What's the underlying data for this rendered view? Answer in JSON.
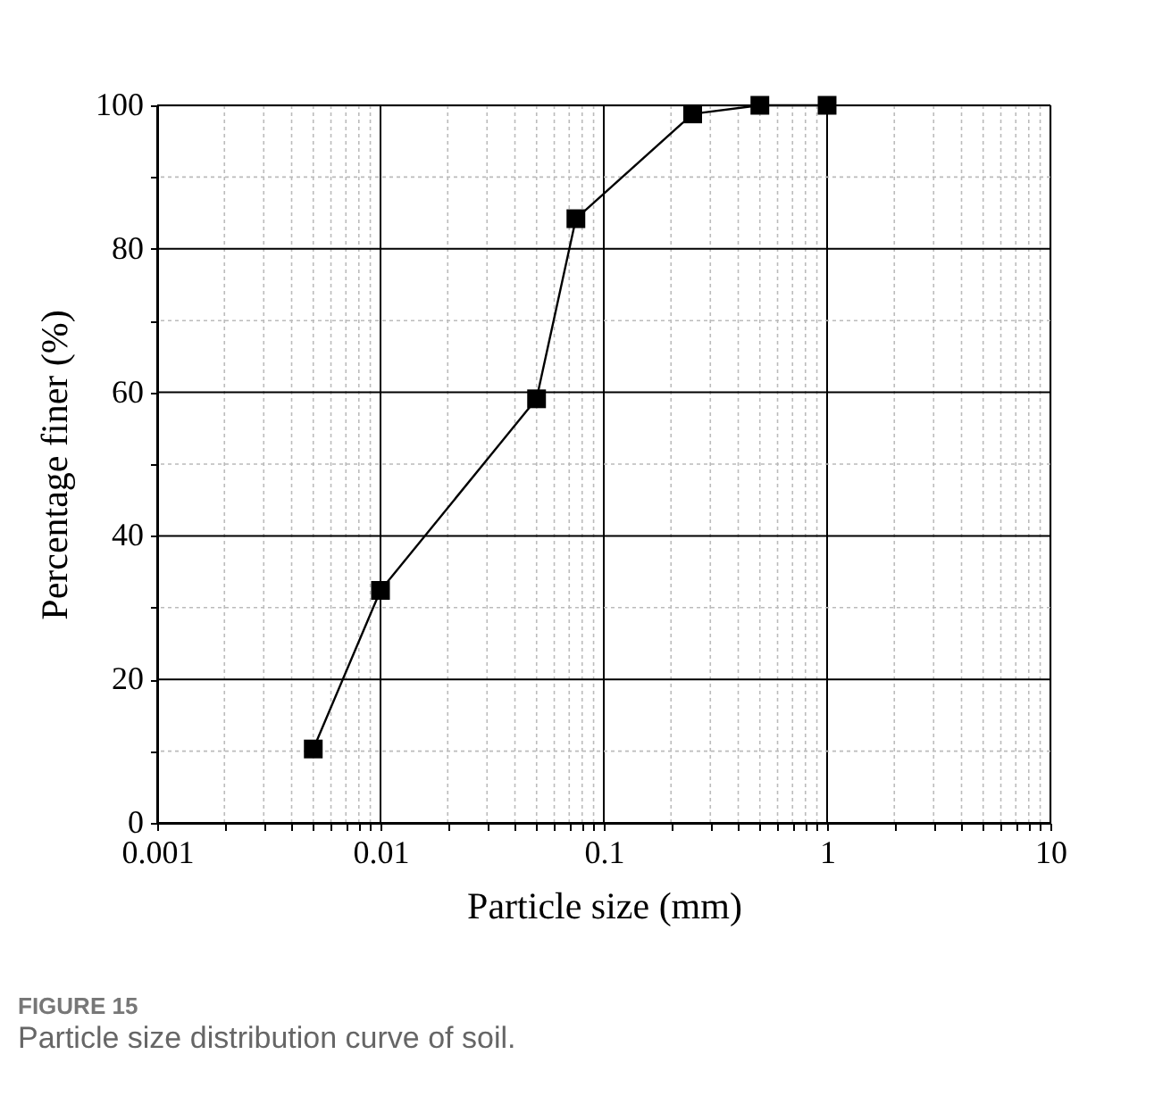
{
  "chart_data": {
    "type": "line",
    "title": "FIGURE 15",
    "subtitle": "Particle size distribution curve of soil.",
    "xlabel": "Particle size (mm)",
    "ylabel": "Percentage finer (%)",
    "x": [
      0.005,
      0.01,
      0.05,
      0.075,
      0.25,
      0.5,
      1
    ],
    "series": [
      {
        "color": "#000000",
        "values": [
          10.3,
          32.4,
          59.1,
          84.2,
          98.8,
          100,
          100
        ]
      }
    ],
    "log": "x",
    "xlim": [
      0.001,
      10
    ],
    "ylim": [
      0,
      100
    ],
    "xticks": [
      {
        "value": 0.001,
        "label": "0.001"
      },
      {
        "value": 0.002,
        "label": null
      },
      {
        "value": 0.003,
        "label": null
      },
      {
        "value": 0.004,
        "label": null
      },
      {
        "value": 0.005,
        "label": null
      },
      {
        "value": 0.006,
        "label": null
      },
      {
        "value": 0.007,
        "label": null
      },
      {
        "value": 0.008,
        "label": null
      },
      {
        "value": 0.009,
        "label": null
      },
      {
        "value": 0.01,
        "label": "0.01"
      },
      {
        "value": 0.02,
        "label": null
      },
      {
        "value": 0.03,
        "label": null
      },
      {
        "value": 0.04,
        "label": null
      },
      {
        "value": 0.05,
        "label": null
      },
      {
        "value": 0.06,
        "label": null
      },
      {
        "value": 0.07,
        "label": null
      },
      {
        "value": 0.08,
        "label": null
      },
      {
        "value": 0.09,
        "label": null
      },
      {
        "value": 0.1,
        "label": "0.1"
      },
      {
        "value": 0.2,
        "label": null
      },
      {
        "value": 0.3,
        "label": null
      },
      {
        "value": 0.4,
        "label": null
      },
      {
        "value": 0.5,
        "label": null
      },
      {
        "value": 0.6,
        "label": null
      },
      {
        "value": 0.7,
        "label": null
      },
      {
        "value": 0.8,
        "label": null
      },
      {
        "value": 0.9,
        "label": null
      },
      {
        "value": 1,
        "label": "1"
      },
      {
        "value": 2,
        "label": null
      },
      {
        "value": 3,
        "label": null
      },
      {
        "value": 4,
        "label": null
      },
      {
        "value": 5,
        "label": null
      },
      {
        "value": 6,
        "label": null
      },
      {
        "value": 7,
        "label": null
      },
      {
        "value": 8,
        "label": null
      },
      {
        "value": 9,
        "label": null
      },
      {
        "value": 10,
        "label": "10"
      }
    ],
    "yticks": [
      0,
      {
        "value": 10,
        "label": null
      },
      20,
      {
        "value": 30,
        "label": null
      },
      40,
      {
        "value": 50,
        "label": null
      },
      60,
      {
        "value": 70,
        "label": null
      },
      80,
      {
        "value": 90,
        "label": null
      },
      100
    ],
    "grid": true,
    "marker": "square",
    "line_style": "solid"
  }
}
